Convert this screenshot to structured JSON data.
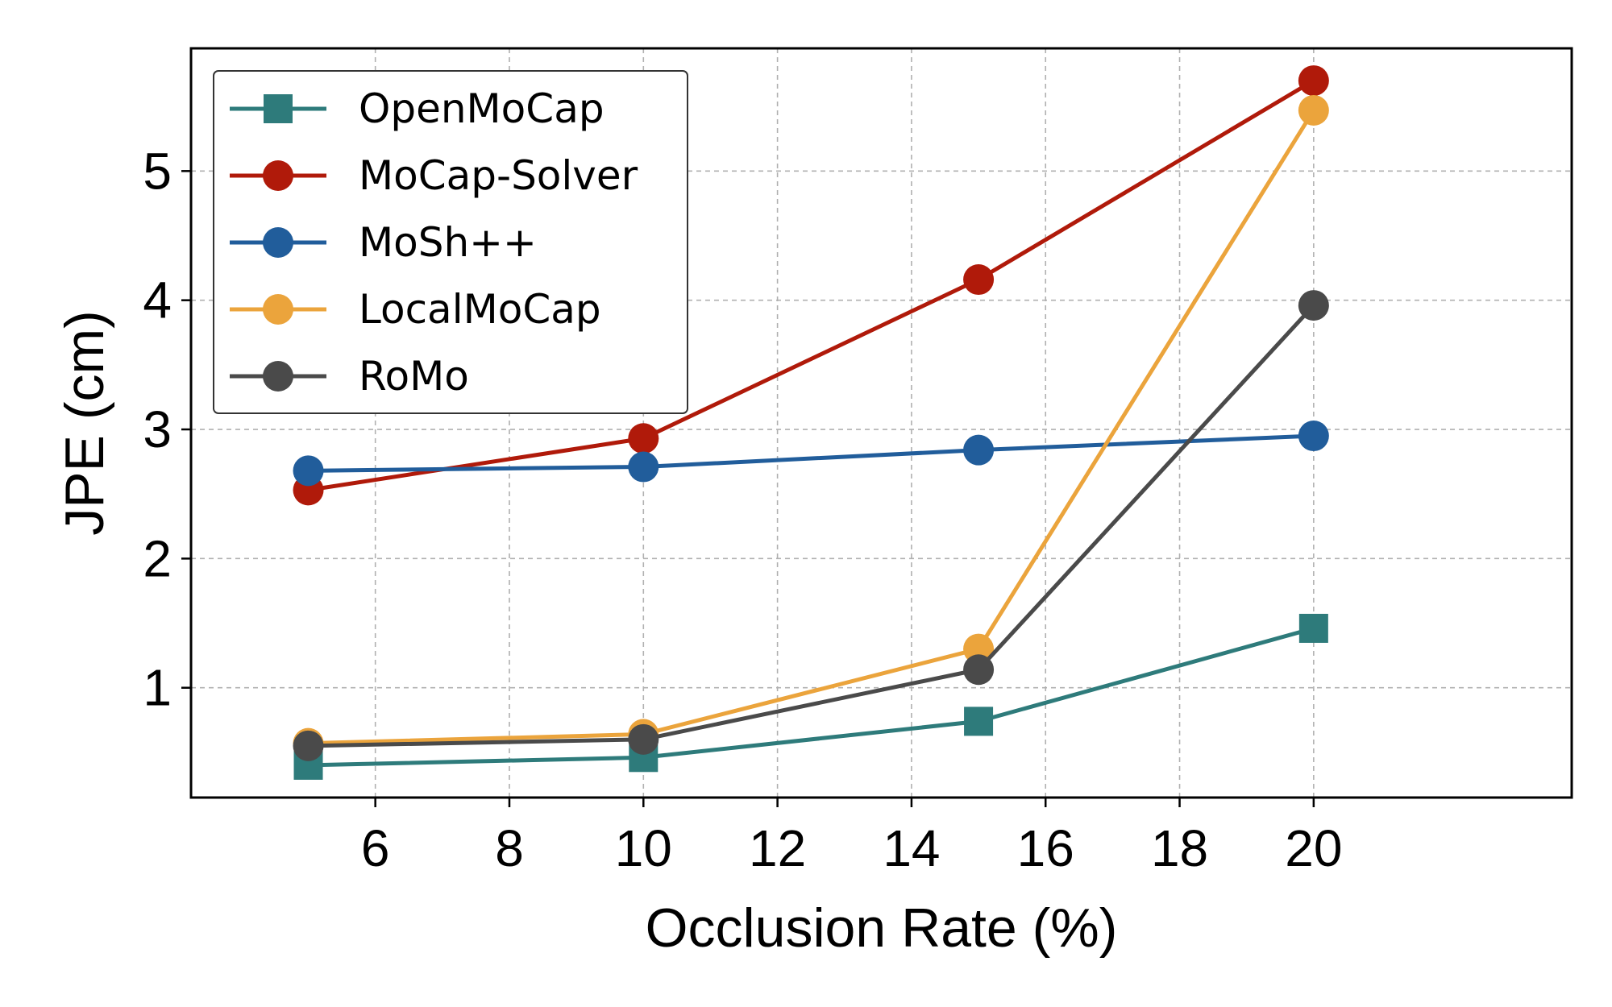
{
  "chart_data": {
    "type": "line",
    "title": "",
    "xlabel": "Occlusion Rate (%)",
    "ylabel": "JPE (cm)",
    "x": [
      5,
      10,
      15,
      20
    ],
    "xlim": [
      3.25,
      23.85
    ],
    "ylim": [
      0.15,
      5.95
    ],
    "xticks": [
      6,
      8,
      10,
      12,
      14,
      16,
      18,
      20
    ],
    "yticks": [
      1,
      2,
      3,
      4,
      5
    ],
    "grid": true,
    "legend_position": "top-left",
    "series": [
      {
        "name": "OpenMoCap",
        "color": "#2e7b7b",
        "marker": "square",
        "values": [
          0.4,
          0.46,
          0.74,
          1.46
        ]
      },
      {
        "name": "MoCap-Solver",
        "color": "#b01a0a",
        "marker": "circle",
        "values": [
          2.53,
          2.93,
          4.16,
          5.7
        ]
      },
      {
        "name": "MoSh++",
        "color": "#215d9b",
        "marker": "circle",
        "values": [
          2.68,
          2.71,
          2.84,
          2.95
        ]
      },
      {
        "name": "LocalMoCap",
        "color": "#eba43c",
        "marker": "circle",
        "values": [
          0.57,
          0.64,
          1.3,
          5.47
        ]
      },
      {
        "name": "RoMo",
        "color": "#4a4a4a",
        "marker": "circle",
        "values": [
          0.55,
          0.6,
          1.14,
          3.96
        ]
      }
    ]
  }
}
